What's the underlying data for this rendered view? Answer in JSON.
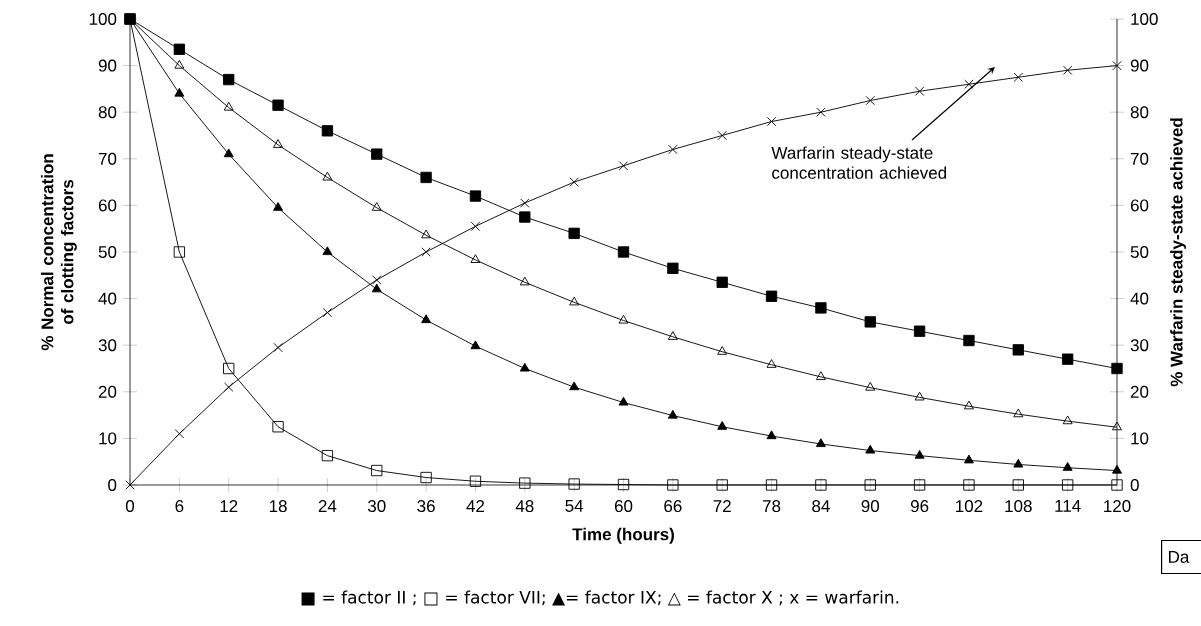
{
  "chart_data": {
    "type": "line",
    "xlabel": "Time (hours)",
    "ylabel": "% Normal concentration of clotting factors",
    "y2label": "% Warfarin steady-state achieved",
    "x": [
      0,
      6,
      12,
      18,
      24,
      30,
      36,
      42,
      48,
      54,
      60,
      66,
      72,
      78,
      84,
      90,
      96,
      102,
      108,
      114,
      120
    ],
    "series": [
      {
        "color": "#000000",
        "marker": "square",
        "values": [
          100,
          93.5,
          87,
          81.5,
          76,
          71,
          66,
          62,
          57.5,
          54,
          50,
          46.5,
          43.5,
          40.5,
          38,
          35,
          33,
          31,
          29,
          27,
          25
        ]
      },
      {
        "color": "#000000",
        "marker": "square-open",
        "values": [
          100,
          50,
          25,
          12.5,
          6.3,
          3.1,
          1.6,
          0.8,
          0.4,
          0.2,
          0.1,
          0,
          0,
          0,
          0,
          0,
          0,
          0,
          0,
          0,
          0
        ]
      },
      {
        "color": "#000000",
        "marker": "triangle",
        "values": [
          100,
          84,
          71,
          59.5,
          50,
          42,
          35.4,
          29.8,
          25,
          21,
          17.7,
          14.9,
          12.5,
          10.5,
          8.8,
          7.4,
          6.3,
          5.3,
          4.4,
          3.7,
          3.1
        ]
      },
      {
        "color": "#000000",
        "marker": "triangle-open",
        "values": [
          100,
          90,
          81,
          73,
          66,
          59.5,
          53.6,
          48.3,
          43.5,
          39.2,
          35.3,
          31.8,
          28.6,
          25.8,
          23.2,
          20.9,
          18.8,
          16.9,
          15.2,
          13.7,
          12.4
        ]
      },
      {
        "color": "#000000",
        "marker": "cross",
        "axis": "y2",
        "values": [
          0,
          11,
          21,
          29.5,
          37,
          44,
          50,
          55.5,
          60.5,
          65,
          68.5,
          72,
          75,
          78,
          80,
          82.5,
          84.5,
          86,
          87.5,
          89,
          90
        ]
      }
    ],
    "xlim": [
      0,
      120
    ],
    "xticks": [
      0,
      6,
      12,
      18,
      24,
      30,
      36,
      42,
      48,
      54,
      60,
      66,
      72,
      78,
      84,
      90,
      96,
      102,
      108,
      114,
      120
    ],
    "ylim": [
      0,
      100
    ],
    "yticks": [
      0,
      10,
      20,
      30,
      40,
      50,
      60,
      70,
      80,
      90,
      100
    ],
    "y2lim": [
      0,
      100
    ],
    "y2ticks": [
      0,
      10,
      20,
      30,
      40,
      50,
      60,
      70,
      80,
      90,
      100
    ],
    "line_style": "solid",
    "annotations": [
      "Warfarin steady-state concentration achieved",
      "■ = factor II ; □ = factor VII; ▲= factor IX; △ = factor X ; x = warfarin.",
      "Da"
    ]
  }
}
